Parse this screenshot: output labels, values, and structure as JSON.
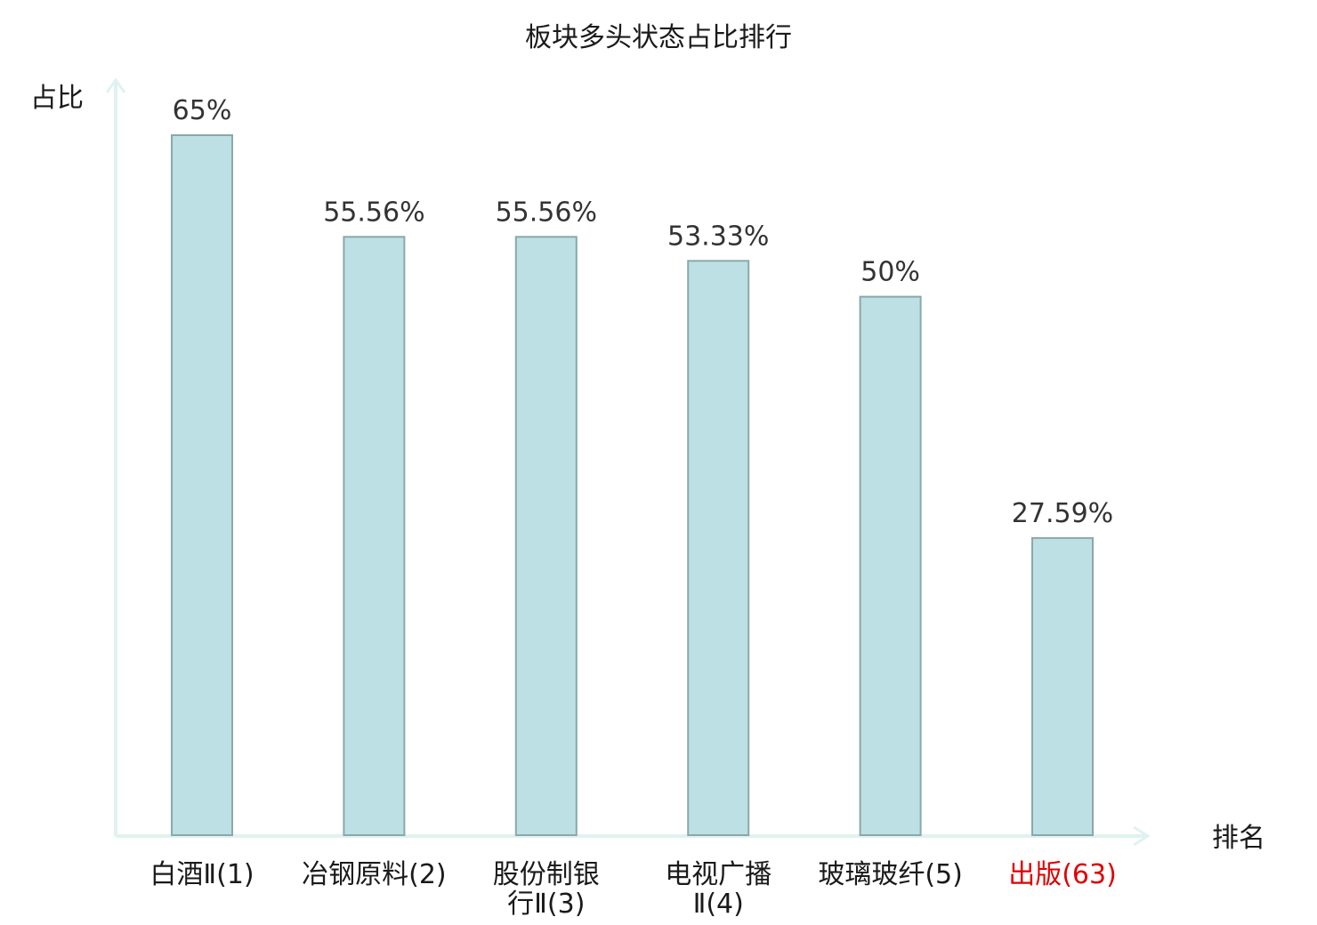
{
  "colors": {
    "bar_fill": "#bce0e3",
    "bar_stroke": "#8aa8aa",
    "axis": "#dff2ef",
    "text": "#1a1a1a",
    "highlight": "#e00000"
  },
  "chart_data": {
    "type": "bar",
    "title": "板块多头状态占比排行",
    "xlabel": "排名",
    "ylabel": "占比",
    "categories": [
      {
        "lines": [
          "白酒Ⅱ(1)"
        ],
        "highlight": false
      },
      {
        "lines": [
          "冶钢原料(2)"
        ],
        "highlight": false
      },
      {
        "lines": [
          "股份制银",
          "行Ⅱ(3)"
        ],
        "highlight": false
      },
      {
        "lines": [
          "电视广播",
          "Ⅱ(4)"
        ],
        "highlight": false
      },
      {
        "lines": [
          "玻璃玻纤(5)"
        ],
        "highlight": false
      },
      {
        "lines": [
          "出版(63)"
        ],
        "highlight": true
      }
    ],
    "values": [
      65,
      55.56,
      55.56,
      53.33,
      50,
      27.59
    ],
    "value_labels": [
      "65%",
      "55.56%",
      "55.56%",
      "53.33%",
      "50%",
      "27.59%"
    ],
    "grid": false,
    "legend": "none"
  }
}
